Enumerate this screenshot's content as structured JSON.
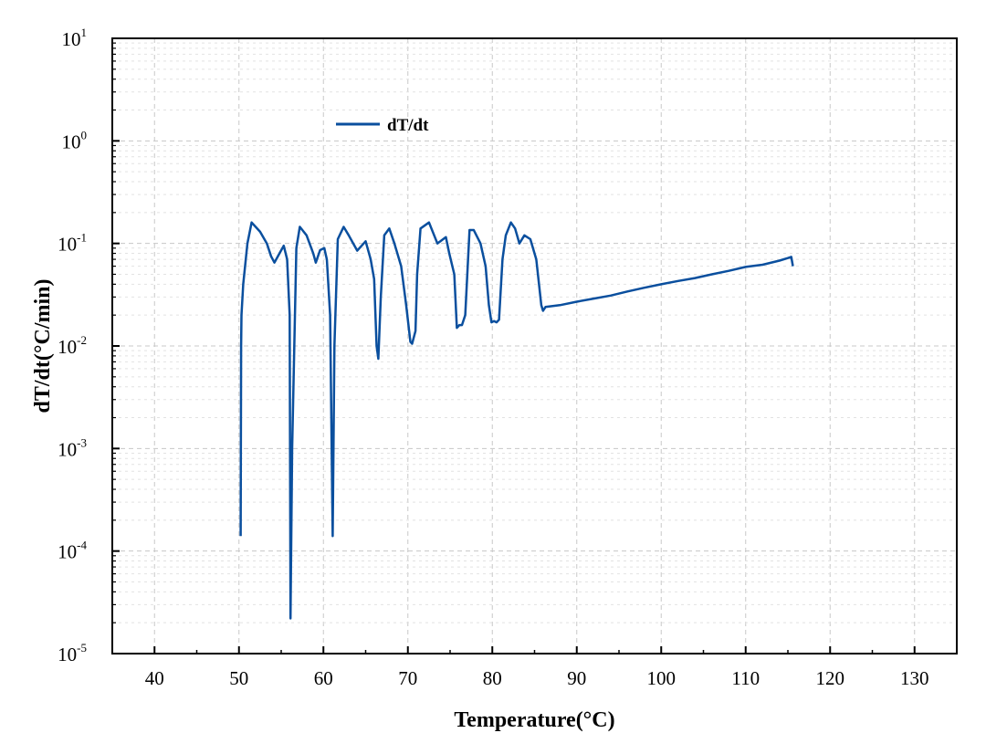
{
  "chart_data": {
    "type": "line",
    "xlabel": "Temperature(°C)",
    "ylabel": "dT/dt(°C/min)",
    "xlim": [
      35,
      135
    ],
    "ylim": [
      1e-05,
      10
    ],
    "yscale": "log",
    "grid": true,
    "legend_position": "top-left",
    "x_ticks": [
      "40",
      "50",
      "60",
      "70",
      "80",
      "90",
      "100",
      "110",
      "120",
      "130"
    ],
    "y_ticks": [
      {
        "base": "10",
        "exp": "-5",
        "value": 1e-05
      },
      {
        "base": "10",
        "exp": "-4",
        "value": 0.0001
      },
      {
        "base": "10",
        "exp": "-3",
        "value": 0.001
      },
      {
        "base": "10",
        "exp": "-2",
        "value": 0.01
      },
      {
        "base": "10",
        "exp": "-1",
        "value": 0.1
      },
      {
        "base": "10",
        "exp": "0",
        "value": 1
      },
      {
        "base": "10",
        "exp": "1",
        "value": 10
      }
    ],
    "series": [
      {
        "name": "dT/dt",
        "color": "#0a4f9e",
        "x": [
          50.2,
          50.25,
          50.3,
          50.5,
          51.0,
          51.5,
          52.5,
          53.3,
          53.8,
          54.2,
          54.8,
          55.3,
          55.7,
          56.0,
          56.1,
          56.3,
          56.8,
          57.2,
          58.0,
          58.8,
          59.1,
          59.6,
          60.1,
          60.4,
          60.8,
          61.1,
          61.3,
          61.7,
          62.4,
          63.0,
          64.0,
          65.0,
          65.6,
          66.0,
          66.3,
          66.5,
          66.8,
          67.2,
          67.8,
          68.4,
          69.2,
          69.8,
          70.3,
          70.5,
          70.9,
          71.1,
          71.5,
          72.5,
          73.5,
          74.5,
          74.9,
          75.5,
          75.8,
          76.1,
          76.4,
          76.8,
          77.3,
          77.8,
          78.6,
          79.2,
          79.6,
          79.9,
          80.2,
          80.5,
          80.8,
          81.2,
          81.6,
          82.2,
          82.7,
          83.2,
          83.8,
          84.5,
          85.2,
          85.8,
          86.0,
          86.3,
          88.0,
          90.0,
          92.0,
          94.0,
          96.0,
          98.0,
          100.0,
          102.0,
          104.0,
          106.0,
          108.0,
          110.0,
          112.0,
          114.0,
          115.0,
          115.4,
          115.6
        ],
        "y": [
          0.00014,
          0.01,
          0.02,
          0.04,
          0.1,
          0.16,
          0.13,
          0.1,
          0.075,
          0.065,
          0.08,
          0.095,
          0.07,
          0.02,
          2.2e-05,
          0.001,
          0.09,
          0.145,
          0.12,
          0.08,
          0.065,
          0.086,
          0.09,
          0.07,
          0.02,
          0.00014,
          0.01,
          0.11,
          0.145,
          0.12,
          0.085,
          0.105,
          0.07,
          0.045,
          0.01,
          0.0075,
          0.03,
          0.12,
          0.14,
          0.1,
          0.06,
          0.025,
          0.011,
          0.0105,
          0.014,
          0.05,
          0.14,
          0.16,
          0.1,
          0.115,
          0.08,
          0.05,
          0.015,
          0.016,
          0.016,
          0.02,
          0.135,
          0.135,
          0.1,
          0.06,
          0.025,
          0.017,
          0.0175,
          0.017,
          0.018,
          0.07,
          0.12,
          0.16,
          0.14,
          0.1,
          0.12,
          0.11,
          0.07,
          0.025,
          0.022,
          0.024,
          0.025,
          0.027,
          0.029,
          0.031,
          0.034,
          0.037,
          0.04,
          0.043,
          0.046,
          0.05,
          0.054,
          0.059,
          0.062,
          0.068,
          0.072,
          0.074,
          0.06
        ]
      }
    ]
  }
}
